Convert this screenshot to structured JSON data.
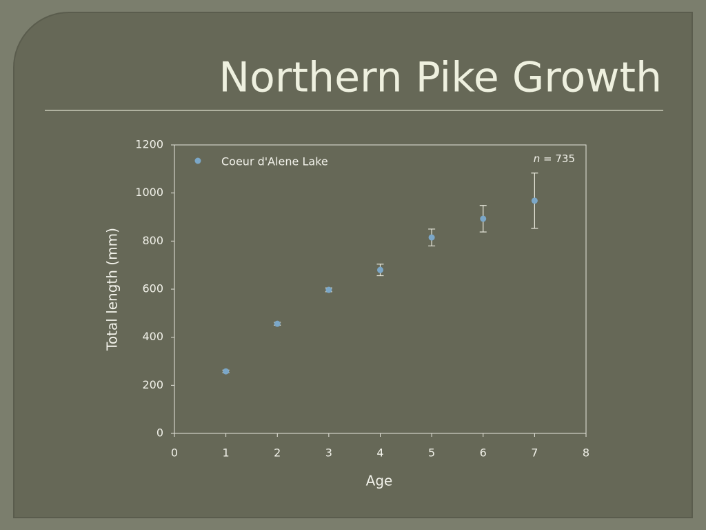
{
  "chart_data": {
    "type": "scatter",
    "title": "Northern Pike Growth",
    "x_label": "Age",
    "y_label": "Total length (mm)",
    "annotation": {
      "variable": "n",
      "text": "= 735"
    },
    "series": [
      {
        "name": "Coeur d'Alene Lake",
        "color": "#7ba7c8",
        "x": [
          1,
          2,
          3,
          4,
          5,
          6,
          7
        ],
        "values": [
          258,
          456,
          597,
          680,
          815,
          893,
          968
        ],
        "errors": [
          5,
          6,
          8,
          24,
          35,
          55,
          115
        ]
      }
    ],
    "xlim": [
      0,
      8
    ],
    "xticks": [
      0,
      1,
      2,
      3,
      4,
      5,
      6,
      7,
      8
    ],
    "ylim": [
      0,
      1200
    ],
    "yticks": [
      0,
      200,
      400,
      600,
      800,
      1000,
      1200
    ],
    "legend": "top-left",
    "grid": false
  }
}
